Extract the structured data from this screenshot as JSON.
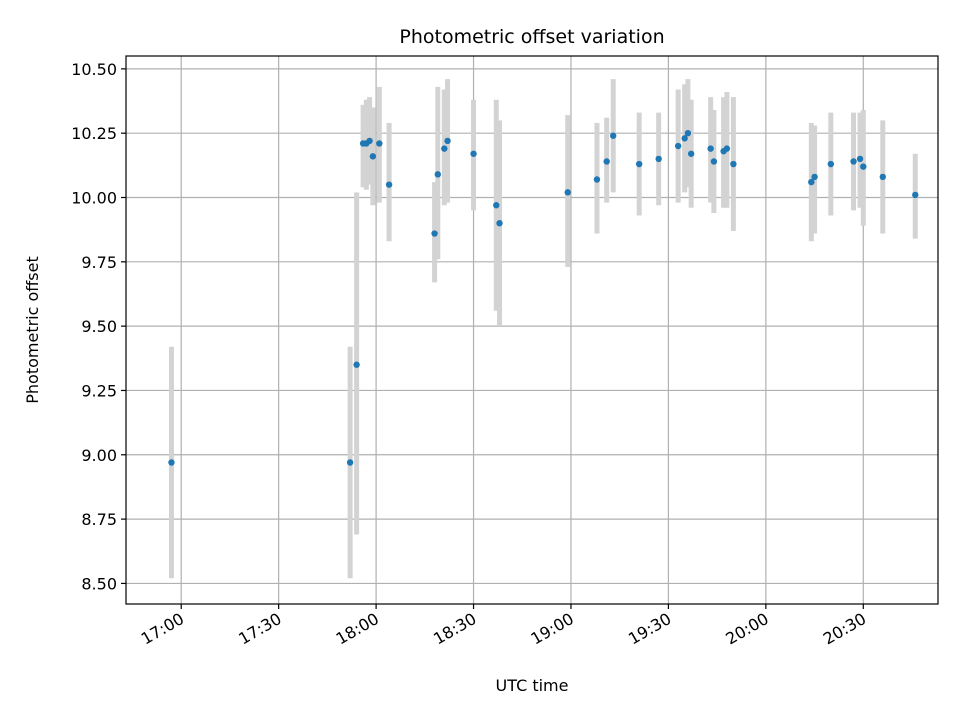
{
  "chart_data": {
    "type": "scatter",
    "title": "Photometric offset variation",
    "xlabel": "UTC time",
    "ylabel": "Photometric offset",
    "grid": true,
    "xlim": [
      "16:43",
      "20:53"
    ],
    "ylim": [
      8.42,
      10.55
    ],
    "xticks": [
      "17:00",
      "17:30",
      "18:00",
      "18:30",
      "19:00",
      "19:30",
      "20:00",
      "20:30"
    ],
    "yticks": [
      "8.50",
      "8.75",
      "9.00",
      "9.25",
      "9.50",
      "9.75",
      "10.00",
      "10.25",
      "10.50"
    ],
    "colors": {
      "point": "#1f77b4",
      "errorbar": "#d3d3d3",
      "grid": "#b0b0b0"
    },
    "points": [
      {
        "x": "16:57",
        "y": 8.97,
        "low": 8.52,
        "high": 9.42
      },
      {
        "x": "17:52",
        "y": 8.97,
        "low": 8.52,
        "high": 9.42
      },
      {
        "x": "17:54",
        "y": 9.35,
        "low": 8.69,
        "high": 10.02
      },
      {
        "x": "17:56",
        "y": 10.21,
        "low": 10.04,
        "high": 10.36
      },
      {
        "x": "17:57",
        "y": 10.21,
        "low": 10.03,
        "high": 10.38
      },
      {
        "x": "17:58",
        "y": 10.22,
        "low": 10.05,
        "high": 10.39
      },
      {
        "x": "17:59",
        "y": 10.16,
        "low": 9.97,
        "high": 10.35
      },
      {
        "x": "18:01",
        "y": 10.21,
        "low": 9.98,
        "high": 10.43
      },
      {
        "x": "18:04",
        "y": 10.05,
        "low": 9.83,
        "high": 10.29
      },
      {
        "x": "18:18",
        "y": 9.86,
        "low": 9.67,
        "high": 10.06
      },
      {
        "x": "18:19",
        "y": 10.09,
        "low": 9.76,
        "high": 10.43
      },
      {
        "x": "18:21",
        "y": 10.19,
        "low": 9.97,
        "high": 10.42
      },
      {
        "x": "18:22",
        "y": 10.22,
        "low": 9.98,
        "high": 10.46
      },
      {
        "x": "18:30",
        "y": 10.17,
        "low": 9.95,
        "high": 10.38
      },
      {
        "x": "18:37",
        "y": 9.97,
        "low": 9.56,
        "high": 10.38
      },
      {
        "x": "18:38",
        "y": 9.9,
        "low": 9.5,
        "high": 10.3
      },
      {
        "x": "18:59",
        "y": 10.02,
        "low": 9.73,
        "high": 10.32
      },
      {
        "x": "19:08",
        "y": 10.07,
        "low": 9.86,
        "high": 10.29
      },
      {
        "x": "19:11",
        "y": 10.14,
        "low": 9.98,
        "high": 10.31
      },
      {
        "x": "19:13",
        "y": 10.24,
        "low": 10.02,
        "high": 10.46
      },
      {
        "x": "19:21",
        "y": 10.13,
        "low": 9.93,
        "high": 10.33
      },
      {
        "x": "19:27",
        "y": 10.15,
        "low": 9.97,
        "high": 10.33
      },
      {
        "x": "19:33",
        "y": 10.2,
        "low": 9.98,
        "high": 10.42
      },
      {
        "x": "19:35",
        "y": 10.23,
        "low": 10.02,
        "high": 10.44
      },
      {
        "x": "19:36",
        "y": 10.25,
        "low": 10.04,
        "high": 10.46
      },
      {
        "x": "19:37",
        "y": 10.17,
        "low": 9.96,
        "high": 10.38
      },
      {
        "x": "19:43",
        "y": 10.19,
        "low": 9.98,
        "high": 10.39
      },
      {
        "x": "19:44",
        "y": 10.14,
        "low": 9.94,
        "high": 10.34
      },
      {
        "x": "19:47",
        "y": 10.18,
        "low": 9.96,
        "high": 10.39
      },
      {
        "x": "19:48",
        "y": 10.19,
        "low": 9.96,
        "high": 10.41
      },
      {
        "x": "19:50",
        "y": 10.13,
        "low": 9.87,
        "high": 10.39
      },
      {
        "x": "20:14",
        "y": 10.06,
        "low": 9.83,
        "high": 10.29
      },
      {
        "x": "20:15",
        "y": 10.08,
        "low": 9.86,
        "high": 10.28
      },
      {
        "x": "20:20",
        "y": 10.13,
        "low": 9.93,
        "high": 10.33
      },
      {
        "x": "20:27",
        "y": 10.14,
        "low": 9.95,
        "high": 10.33
      },
      {
        "x": "20:29",
        "y": 10.15,
        "low": 9.96,
        "high": 10.33
      },
      {
        "x": "20:30",
        "y": 10.12,
        "low": 9.89,
        "high": 10.34
      },
      {
        "x": "20:36",
        "y": 10.08,
        "low": 9.86,
        "high": 10.3
      },
      {
        "x": "20:46",
        "y": 10.01,
        "low": 9.84,
        "high": 10.17
      }
    ]
  }
}
